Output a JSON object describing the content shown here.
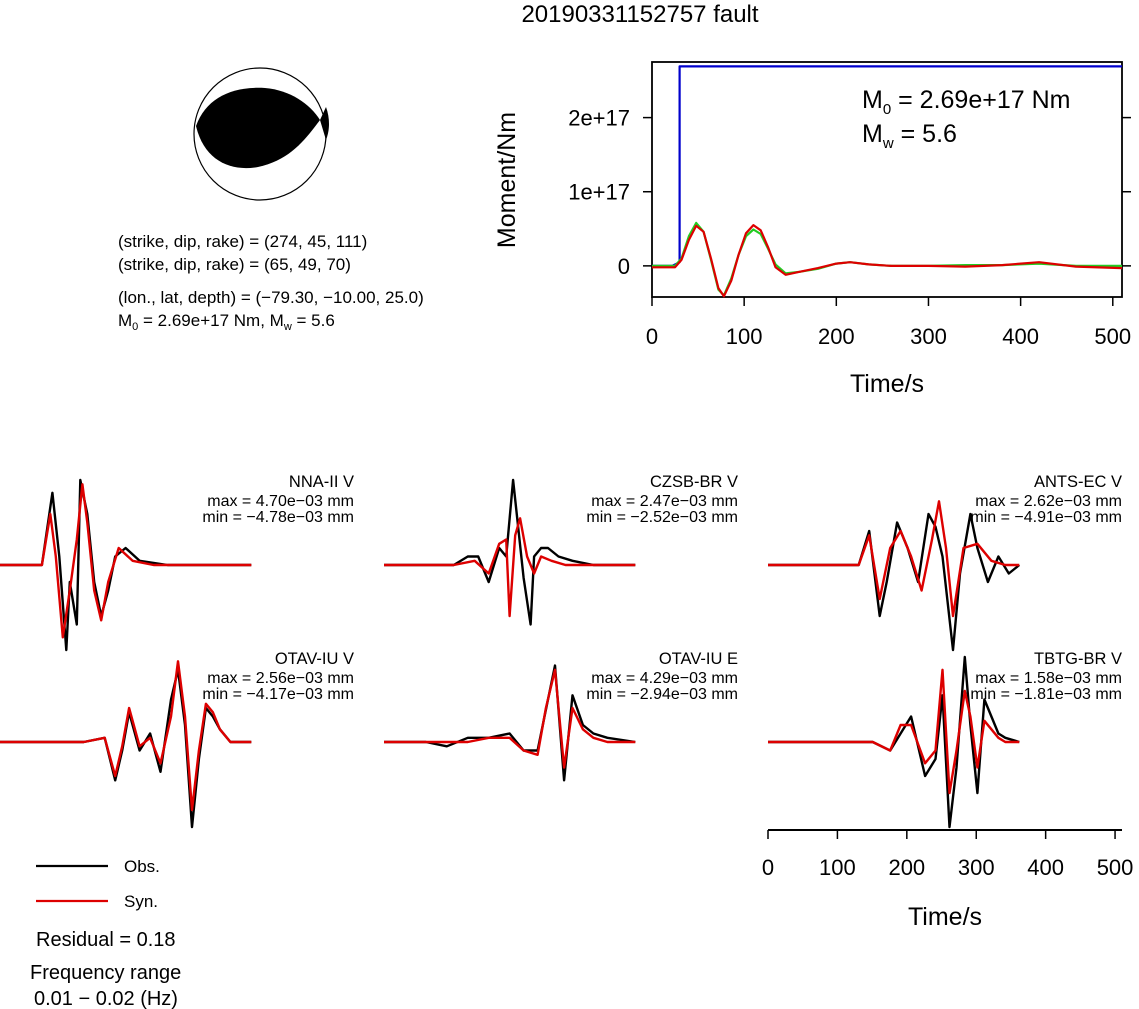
{
  "title": "20190331152757 fault",
  "mechanism": {
    "plane1": "(strike, dip, rake) = (274, 45, 111)",
    "plane2": "(strike, dip, rake) = (65, 49, 70)",
    "location": "(lon., lat, depth) = (−79.30, −10.00, 25.0)",
    "moment_line": "M₀ = 2.69e+17 Nm, Mᵥ = 5.6",
    "moment_prefix": "M",
    "moment_sub0": "0",
    "moment_mid": " = 2.69e+17 Nm, M",
    "moment_subw": "w",
    "moment_tail": " = 5.6",
    "fill_color": "#000000"
  },
  "moment_plot": {
    "ylabel": "Moment/Nm",
    "xlabel": "Time/s",
    "m0_prefix": "M",
    "m0_sub": "0",
    "m0_value": " = 2.69e+17 Nm",
    "mw_prefix": "M",
    "mw_sub": "w",
    "mw_value": " = 5.6",
    "y_ticks": [
      "2e+17",
      "1e+17",
      "0"
    ],
    "x_ticks": [
      "0",
      "100",
      "200",
      "300",
      "400",
      "500"
    ],
    "colors": {
      "cumulative": "#0000cc",
      "rate_green": "#22cc22",
      "rate_red": "#dd0000"
    }
  },
  "waveforms": [
    {
      "label": "NNA-II V",
      "max": "max = 4.70e−03 mm",
      "min": "min = −4.78e−03 mm"
    },
    {
      "label": "CZSB-BR V",
      "max": "max = 2.47e−03 mm",
      "min": "min = −2.52e−03 mm"
    },
    {
      "label": "ANTS-EC V",
      "max": "max = 2.62e−03 mm",
      "min": "min = −4.91e−03 mm"
    },
    {
      "label": "OTAV-IU V",
      "max": "max = 2.56e−03 mm",
      "min": "min = −4.17e−03 mm"
    },
    {
      "label": "OTAV-IU E",
      "max": "max = 4.29e−03 mm",
      "min": "min = −2.94e−03 mm"
    },
    {
      "label": "TBTG-BR V",
      "max": "max = 1.58e−03 mm",
      "min": "min = −1.81e−03 mm"
    }
  ],
  "waveform_axis": {
    "xlabel": "Time/s",
    "x_ticks": [
      "0",
      "100",
      "200",
      "300",
      "400",
      "500"
    ]
  },
  "legend": {
    "obs": "Obs.",
    "syn": "Syn.",
    "obs_color": "#000000",
    "syn_color": "#dd0000"
  },
  "residual": "Residual = 0.18",
  "frequency_label": "Frequency range",
  "frequency_value": "0.01 − 0.02 (Hz)",
  "chart_data": [
    {
      "type": "line",
      "title": "",
      "xlabel": "Time/s",
      "ylabel": "Moment/Nm",
      "xlim": [
        0,
        510
      ],
      "ylim": [
        -4.2e+16,
        2.75e+17
      ],
      "series": [
        {
          "x": [
            0,
            22,
            30,
            30,
            510
          ],
          "values": [
            0,
            0,
            5000000000000000.0,
            2.69e+17,
            2.69e+17
          ]
        },
        {
          "x": [
            0,
            25,
            32,
            40,
            48,
            56,
            64,
            72,
            78,
            86,
            94,
            102,
            110,
            118,
            126,
            134,
            145,
            160,
            180,
            200,
            215,
            235,
            260,
            300,
            340,
            380,
            420,
            460,
            510
          ],
          "values": [
            0,
            0,
            1e+16,
            4e+16,
            5.8e+16,
            4.6e+16,
            8000000000000000.0,
            -3.2e+16,
            -4e+16,
            -1.7e+16,
            1.5e+16,
            4e+16,
            4.9e+16,
            4.3e+16,
            2.3e+16,
            2000000000000000.0,
            -1e+16,
            -8000000000000000.0,
            -4000000000000000.0,
            3000000000000000.0,
            5000000000000000.0,
            2000000000000000.0,
            0,
            0,
            1000000000000000.0,
            1000000000000000.0,
            3000000000000000.0,
            0,
            0
          ]
        },
        {
          "x": [
            0,
            25,
            32,
            40,
            48,
            56,
            64,
            72,
            78,
            86,
            94,
            102,
            110,
            118,
            126,
            134,
            145,
            160,
            180,
            200,
            215,
            235,
            260,
            300,
            340,
            380,
            420,
            460,
            510
          ],
          "values": [
            -2000000000000000.0,
            -2000000000000000.0,
            8000000000000000.0,
            3.5e+16,
            5.4e+16,
            4.6e+16,
            1e+16,
            -3e+16,
            -4.1e+16,
            -2e+16,
            1.5e+16,
            4.4e+16,
            5.5e+16,
            4.8e+16,
            2.5e+16,
            -2000000000000000.0,
            -1.2e+16,
            -8000000000000000.0,
            -3000000000000000.0,
            3000000000000000.0,
            5000000000000000.0,
            2000000000000000.0,
            0,
            0,
            -1000000000000000.0,
            1000000000000000.0,
            5000000000000000.0,
            -1000000000000000.0,
            -3000000000000000.0
          ]
        }
      ]
    },
    {
      "type": "line",
      "xlabel": "Time/s",
      "xlim": [
        0,
        510
      ],
      "ylim": [
        -1.1,
        1.05
      ],
      "panels": [
        {
          "label": "NNA-II V",
          "obs": {
            "x": [
              0,
              60,
              75,
              85,
              95,
              100,
              110,
              115,
              125,
              135,
              145,
              155,
              165,
              180,
              200,
              240,
              360
            ],
            "values": [
              0,
              0,
              0.85,
              0.1,
              -1.0,
              -0.2,
              -0.7,
              1.0,
              0.6,
              -0.2,
              -0.6,
              -0.3,
              0.1,
              0.2,
              0.05,
              0,
              0
            ]
          },
          "syn": {
            "x": [
              0,
              60,
              72,
              80,
              90,
              100,
              110,
              118,
              125,
              135,
              145,
              155,
              170,
              190,
              220,
              360
            ],
            "values": [
              0,
              0,
              0.6,
              0.1,
              -0.85,
              -0.3,
              0.3,
              0.95,
              0.5,
              -0.3,
              -0.65,
              -0.2,
              0.2,
              0.05,
              0,
              0
            ]
          }
        },
        {
          "label": "CZSB-BR V",
          "obs": {
            "x": [
              0,
              100,
              120,
              135,
              150,
              165,
              175,
              185,
              200,
              210,
              215,
              225,
              235,
              250,
              270,
              300,
              360
            ],
            "values": [
              0,
              0,
              0.1,
              0.1,
              -0.2,
              0.2,
              0.1,
              1.0,
              -0.15,
              -0.7,
              0.1,
              0.2,
              0.2,
              0.1,
              0.05,
              0,
              0
            ]
          },
          "syn": {
            "x": [
              0,
              100,
              130,
              150,
              165,
              175,
              180,
              188,
              195,
              205,
              215,
              225,
              240,
              260,
              300,
              360
            ],
            "values": [
              0,
              0,
              0.05,
              -0.1,
              0.25,
              0.3,
              -0.6,
              0.35,
              0.55,
              0.1,
              -0.1,
              0.1,
              0.05,
              0,
              0,
              0
            ]
          }
        },
        {
          "label": "ANTS-EC V",
          "obs": {
            "x": [
              0,
              130,
              145,
              160,
              170,
              185,
              200,
              215,
              230,
              240,
              250,
              265,
              275,
              290,
              300,
              315,
              330,
              345,
              360
            ],
            "values": [
              0,
              0,
              0.4,
              -0.6,
              -0.2,
              0.5,
              0.2,
              -0.2,
              0.6,
              0.45,
              0.1,
              -1.0,
              -0.1,
              0.6,
              0.2,
              -0.2,
              0.1,
              -0.1,
              0
            ]
          },
          "syn": {
            "x": [
              0,
              130,
              145,
              160,
              175,
              190,
              205,
              220,
              235,
              245,
              255,
              265,
              280,
              300,
              320,
              340,
              360
            ],
            "values": [
              0,
              0,
              0.35,
              -0.4,
              0.2,
              0.4,
              0.1,
              -0.3,
              0.3,
              0.75,
              0.2,
              -0.6,
              0.2,
              0.25,
              0.05,
              0,
              0
            ]
          }
        },
        {
          "label": "OTAV-IU V",
          "obs": {
            "x": [
              0,
              120,
              150,
              165,
              175,
              185,
              200,
              215,
              230,
              245,
              255,
              265,
              275,
              285,
              295,
              305,
              315,
              330,
              360
            ],
            "values": [
              0,
              0,
              0.05,
              -0.45,
              -0.1,
              0.35,
              -0.1,
              0.1,
              -0.35,
              0.5,
              0.85,
              0.2,
              -1.0,
              -0.2,
              0.4,
              0.3,
              0.15,
              0,
              0
            ]
          },
          "syn": {
            "x": [
              0,
              120,
              150,
              165,
              175,
              185,
              200,
              215,
              230,
              245,
              255,
              265,
              275,
              285,
              295,
              305,
              315,
              330,
              360
            ],
            "values": [
              0,
              0,
              0.05,
              -0.4,
              -0.05,
              0.4,
              -0.05,
              0.05,
              -0.25,
              0.3,
              0.95,
              0.3,
              -0.8,
              -0.1,
              0.45,
              0.35,
              0.15,
              0,
              0
            ]
          }
        },
        {
          "label": "OTAV-IU E",
          "obs": {
            "x": [
              0,
              60,
              90,
              120,
              150,
              180,
              200,
              220,
              230,
              245,
              258,
              270,
              285,
              300,
              320,
              360
            ],
            "values": [
              0,
              0,
              -0.05,
              0.05,
              0.05,
              0.1,
              -0.1,
              -0.1,
              0.3,
              0.9,
              -0.45,
              0.55,
              0.2,
              0.1,
              0.05,
              0
            ]
          },
          "syn": {
            "x": [
              0,
              60,
              90,
              120,
              150,
              180,
              200,
              220,
              232,
              245,
              258,
              270,
              285,
              300,
              320,
              360
            ],
            "values": [
              0,
              0,
              0,
              0,
              0.05,
              0.05,
              -0.1,
              -0.15,
              0.4,
              0.85,
              -0.3,
              0.4,
              0.15,
              0.05,
              0,
              0
            ]
          }
        },
        {
          "label": "TBTG-BR V",
          "obs": {
            "x": [
              0,
              150,
              175,
              190,
              205,
              225,
              240,
              250,
              260,
              270,
              282,
              290,
              300,
              310,
              320,
              330,
              340,
              360
            ],
            "values": [
              0,
              0,
              -0.1,
              0.1,
              0.3,
              -0.4,
              -0.2,
              0.55,
              -1.0,
              -0.3,
              1.0,
              0.2,
              -0.6,
              0.5,
              0.3,
              0.1,
              0.05,
              0
            ]
          },
          "syn": {
            "x": [
              0,
              150,
              175,
              190,
              205,
              225,
              240,
              250,
              260,
              270,
              282,
              290,
              300,
              310,
              320,
              330,
              340,
              360
            ],
            "values": [
              0,
              0,
              -0.1,
              0.2,
              0.2,
              -0.25,
              -0.1,
              0.85,
              -0.6,
              -0.1,
              0.6,
              0.3,
              -0.3,
              0.25,
              0.15,
              0.05,
              0,
              0
            ]
          }
        }
      ]
    }
  ]
}
